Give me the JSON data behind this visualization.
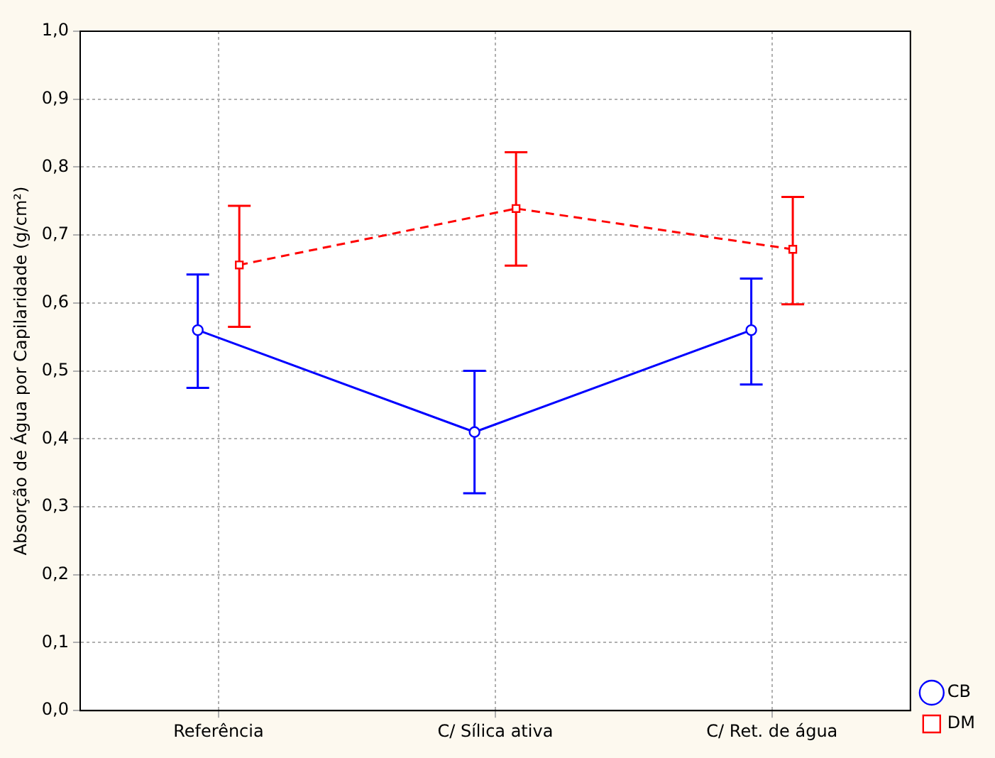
{
  "chart_data": {
    "type": "line",
    "ylabel": "Absorção de Água por Capilaridade (g/cm²)",
    "categories": [
      "Referência",
      "C/ Sílica ativa",
      "C/ Ret. de água"
    ],
    "ylim": [
      0,
      1
    ],
    "yticks": [
      {
        "value": 0,
        "label": "0,0"
      },
      {
        "value": 0.1,
        "label": "0,1"
      },
      {
        "value": 0.2,
        "label": "0,2"
      },
      {
        "value": 0.3,
        "label": "0,3"
      },
      {
        "value": 0.4,
        "label": "0,4"
      },
      {
        "value": 0.5,
        "label": "0,5"
      },
      {
        "value": 0.6,
        "label": "0,6"
      },
      {
        "value": 0.7,
        "label": "0,7"
      },
      {
        "value": 0.8,
        "label": "0,8"
      },
      {
        "value": 0.9,
        "label": "0,9"
      },
      {
        "value": 1,
        "label": "1,0"
      }
    ],
    "grid": true,
    "legend": "bottom right",
    "series": [
      {
        "name": "CB",
        "color": "#0000ff",
        "values": [
          0.56,
          0.41,
          0.56
        ],
        "errors": [
          [
            0.475,
            0.642
          ],
          [
            0.32,
            0.5
          ],
          [
            0.48,
            0.636
          ]
        ],
        "marker": "circle",
        "line_style": "solid"
      },
      {
        "name": "DM",
        "color": "#ff0000",
        "values": [
          0.656,
          0.739,
          0.679
        ],
        "errors": [
          [
            0.565,
            0.743
          ],
          [
            0.655,
            0.822
          ],
          [
            0.598,
            0.756
          ]
        ],
        "marker": "square",
        "line_style": "dashed"
      }
    ]
  }
}
